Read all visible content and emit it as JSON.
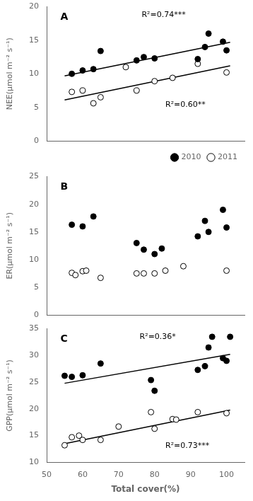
{
  "chart_data": [
    {
      "type": "scatter",
      "title": "A",
      "ylabel": "NEE(μmol m⁻² s⁻¹)",
      "xlim": [
        50,
        105
      ],
      "xticks": [
        50,
        60,
        70,
        80,
        90,
        100
      ],
      "ylim": [
        0,
        20
      ],
      "yticks": [
        0,
        5,
        10,
        15,
        20
      ],
      "grid": false,
      "tick_labels": "y",
      "legend": "lower right",
      "annotations": [
        "R²=0.74***",
        "R²=0.60**"
      ],
      "series": [
        {
          "name": "2010",
          "color": "#000000",
          "marker": "circle",
          "x": [
            57,
            60,
            63,
            65,
            75,
            77,
            80,
            92,
            94,
            95,
            99,
            100
          ],
          "values": [
            10.0,
            10.5,
            10.7,
            13.4,
            12.0,
            12.5,
            12.3,
            12.2,
            14.0,
            16.0,
            14.8,
            13.5
          ]
        },
        {
          "name": "2011",
          "color": "#ffffff",
          "marker": "circle",
          "x": [
            57,
            60,
            63,
            65,
            72,
            75,
            80,
            85,
            92,
            100
          ],
          "values": [
            7.3,
            7.5,
            5.6,
            6.5,
            11.0,
            7.5,
            8.9,
            9.4,
            11.5,
            10.2
          ]
        },
        {
          "type": "line",
          "color": "#000000",
          "line_style": "solid",
          "x": [
            55,
            101
          ],
          "values": [
            9.7,
            14.7
          ]
        },
        {
          "type": "line",
          "color": "#000000",
          "line_style": "solid",
          "x": [
            55,
            101
          ],
          "values": [
            6.1,
            11.2
          ]
        }
      ]
    },
    {
      "type": "scatter",
      "title": "B",
      "ylabel": "ER(μmol m⁻² s⁻¹)",
      "xlim": [
        50,
        105
      ],
      "xticks": [
        50,
        60,
        70,
        80,
        90,
        100
      ],
      "ylim": [
        0,
        25
      ],
      "yticks": [
        0,
        5,
        10,
        15,
        20,
        25
      ],
      "grid": false,
      "tick_labels": "y",
      "series": [
        {
          "name": "2010",
          "color": "#000000",
          "marker": "circle",
          "x": [
            57,
            60,
            63,
            75,
            77,
            80,
            82,
            92,
            94,
            95,
            99,
            100
          ],
          "values": [
            16.3,
            16.0,
            17.8,
            13.0,
            11.8,
            11.0,
            12.0,
            14.2,
            17.0,
            15.0,
            19.0,
            15.8
          ]
        },
        {
          "name": "2011",
          "color": "#ffffff",
          "marker": "circle",
          "x": [
            57,
            58,
            60,
            61,
            65,
            75,
            77,
            80,
            83,
            88,
            100
          ],
          "values": [
            7.6,
            7.2,
            7.9,
            8.0,
            6.7,
            7.5,
            7.5,
            7.5,
            8.0,
            8.8,
            8.0
          ]
        }
      ]
    },
    {
      "type": "scatter",
      "title": "C",
      "xlabel": "Total cover(%)",
      "ylabel": "GPP(μmol m⁻² s⁻¹)",
      "xlim": [
        50,
        105
      ],
      "xticks": [
        50,
        60,
        70,
        80,
        90,
        100
      ],
      "ylim": [
        10,
        35
      ],
      "yticks": [
        10,
        15,
        20,
        25,
        30,
        35
      ],
      "grid": false,
      "annotations": [
        "R²=0.36*",
        "R²=0.73***"
      ],
      "series": [
        {
          "name": "2010",
          "color": "#000000",
          "marker": "circle",
          "x": [
            55,
            57,
            60,
            65,
            79,
            80,
            92,
            94,
            95,
            96,
            99,
            100,
            101
          ],
          "values": [
            26.2,
            26.0,
            26.3,
            28.5,
            25.4,
            23.4,
            27.3,
            28.0,
            31.5,
            33.5,
            29.5,
            29.0,
            33.5
          ]
        },
        {
          "name": "2011",
          "color": "#ffffff",
          "marker": "circle",
          "x": [
            55,
            57,
            59,
            60,
            65,
            70,
            79,
            80,
            85,
            86,
            92,
            100
          ],
          "values": [
            13.2,
            14.7,
            15.0,
            14.2,
            14.2,
            16.7,
            19.4,
            16.3,
            18.1,
            18.0,
            19.4,
            19.2
          ]
        },
        {
          "type": "line",
          "color": "#000000",
          "line_style": "solid",
          "x": [
            55,
            101
          ],
          "values": [
            24.8,
            30.2
          ]
        },
        {
          "type": "line",
          "color": "#000000",
          "line_style": "solid",
          "x": [
            55,
            101
          ],
          "values": [
            13.5,
            19.8
          ]
        }
      ]
    }
  ]
}
